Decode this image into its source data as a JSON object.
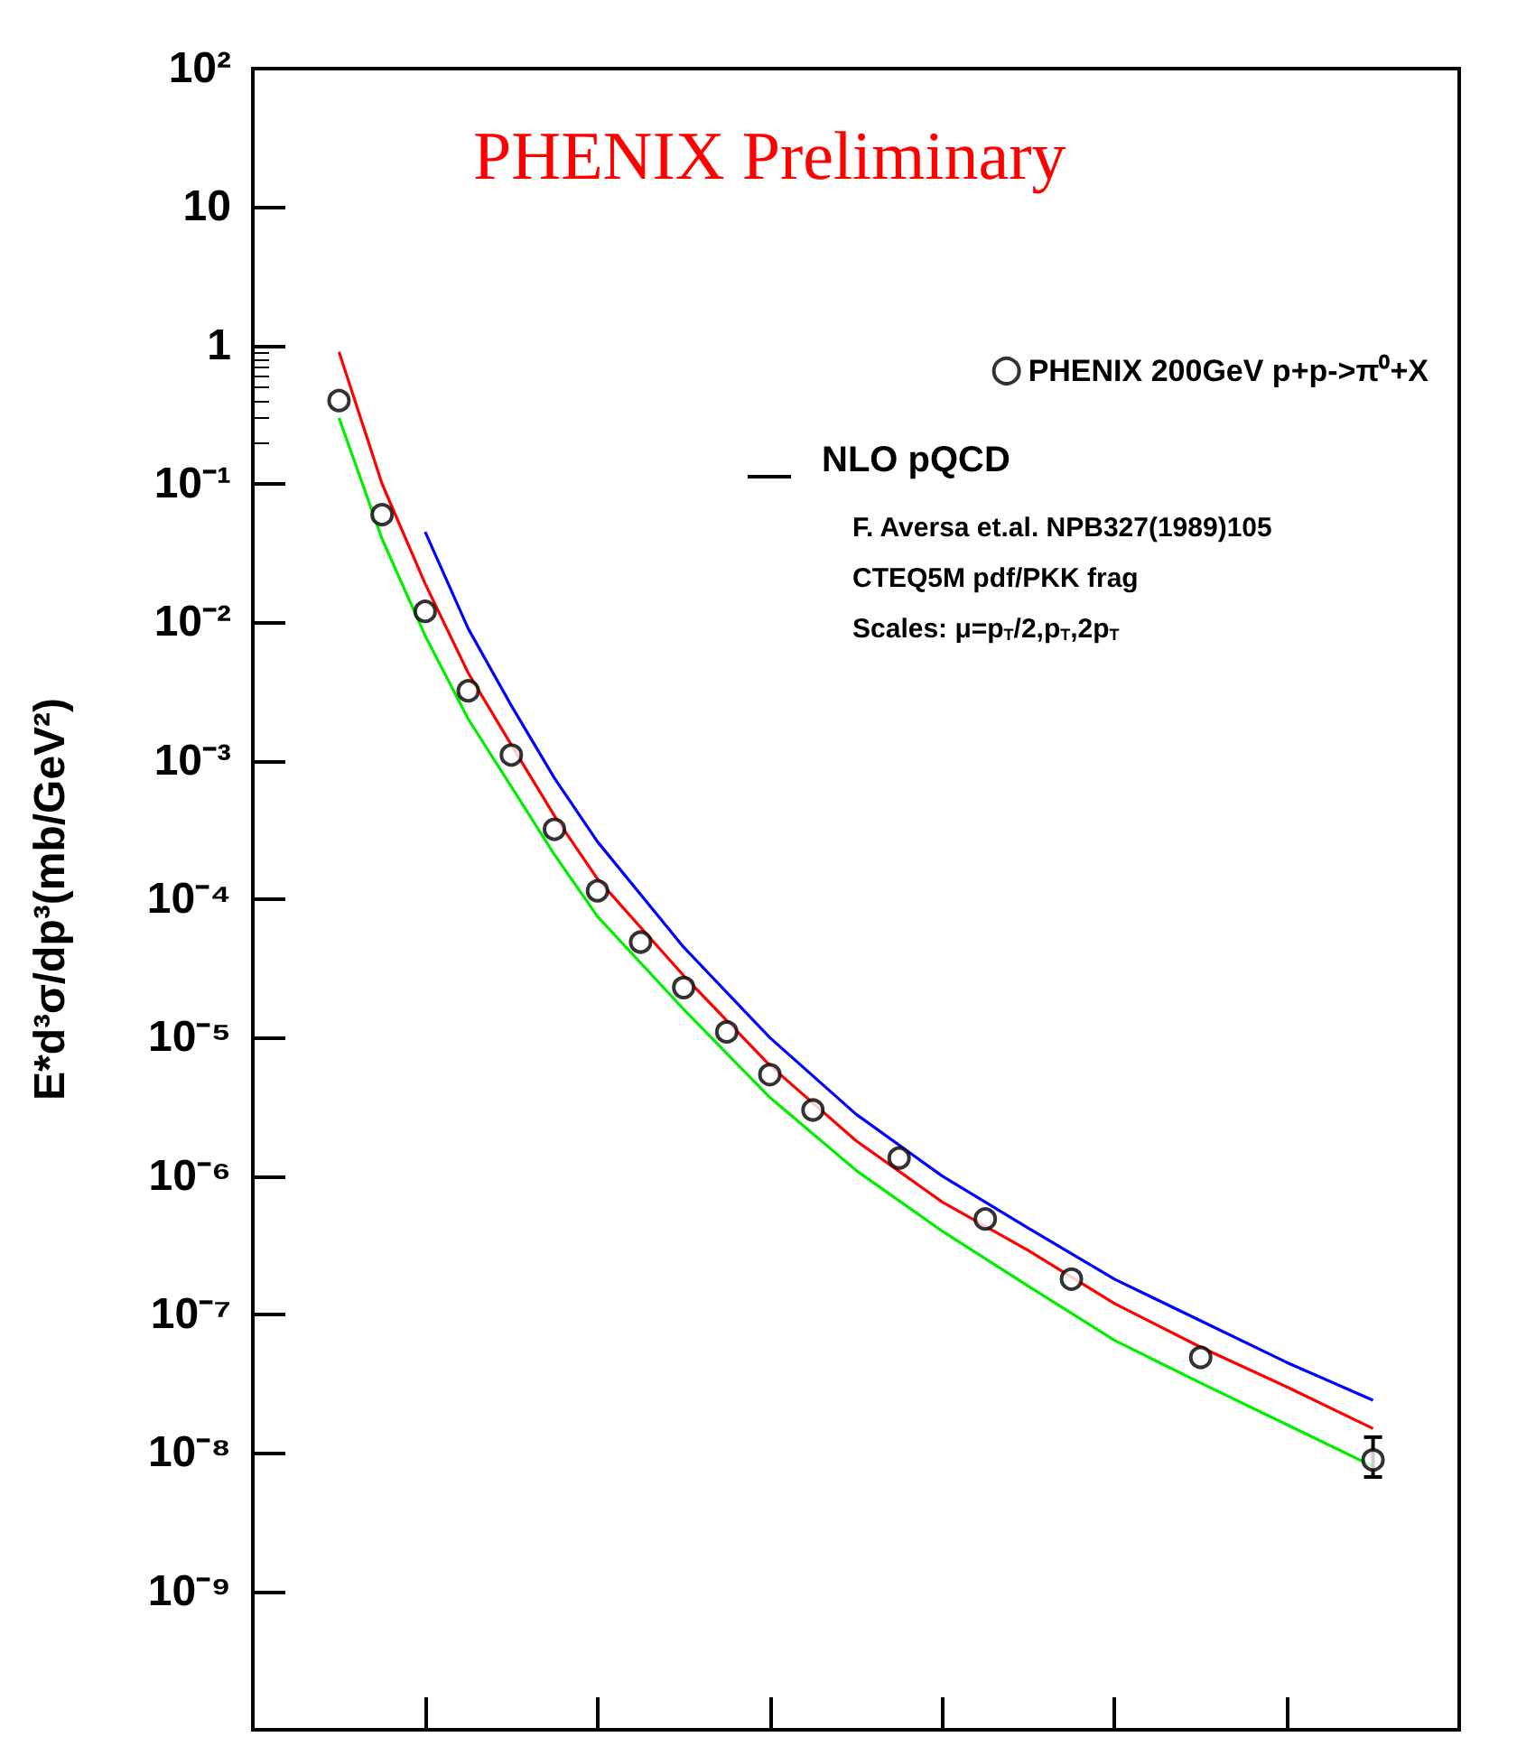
{
  "chart_data": {
    "type": "line",
    "title": "PHENIX Preliminary",
    "ylabel": "E*d³σ/dp³(mb/GeV²)",
    "categories": [
      null,
      null,
      null,
      null,
      null,
      null,
      null,
      null,
      null,
      null,
      null,
      null,
      null,
      null,
      null,
      null,
      null,
      null,
      null,
      null,
      null,
      null,
      null,
      null,
      null,
      null,
      null,
      null,
      null
    ],
    "series": [
      {
        "name": "PHENIX 200GeV p+p->π⁰+X",
        "type": "scatter",
        "color": "#000000",
        "marker": "circle",
        "values": [
          null,
          null,
          0.4,
          0.06,
          0.012,
          0.0032,
          0.0011,
          0.00032,
          0.000115,
          4.9e-05,
          2.3e-05,
          1.1e-05,
          5.4e-06,
          3e-06,
          null,
          1.35e-06,
          null,
          4.9e-07,
          null,
          1.8e-07,
          null,
          null,
          4.9e-08,
          null,
          null,
          null,
          8.9e-09,
          null,
          null
        ],
        "errors": [
          null,
          null,
          null,
          null,
          null,
          null,
          null,
          null,
          null,
          null,
          null,
          null,
          null,
          null,
          null,
          null,
          null,
          null,
          null,
          null,
          null,
          null,
          null,
          null,
          null,
          null,
          [
            6.7e-09,
            1.3e-08
          ],
          null,
          null
        ]
      },
      {
        "color": "#ff0000",
        "values": [
          null,
          null,
          0.9,
          0.1,
          0.019,
          0.0043,
          0.0013,
          0.0004,
          0.00014,
          null,
          2.8e-05,
          null,
          6.3e-06,
          null,
          1.8e-06,
          null,
          6.5e-07,
          null,
          2.9e-07,
          null,
          1.2e-07,
          null,
          5.8e-08,
          null,
          3e-08,
          null,
          1.5e-08,
          null,
          null
        ]
      },
      {
        "color": "#00ee00",
        "values": [
          null,
          null,
          0.3,
          0.04,
          0.008,
          0.002,
          0.00065,
          0.00021,
          7.5e-05,
          null,
          1.6e-05,
          null,
          3.7e-06,
          null,
          1.1e-06,
          null,
          4e-07,
          null,
          1.6e-07,
          null,
          6.5e-08,
          null,
          3.2e-08,
          null,
          1.6e-08,
          null,
          8e-09,
          null,
          null
        ]
      },
      {
        "color": "#0000ff",
        "values": [
          null,
          null,
          null,
          null,
          0.045,
          0.009,
          0.0025,
          0.00075,
          0.00026,
          null,
          4.5e-05,
          null,
          1e-05,
          null,
          2.8e-06,
          null,
          1e-06,
          null,
          4.2e-07,
          null,
          1.8e-07,
          null,
          9e-08,
          null,
          4.5e-08,
          null,
          2.4e-08,
          null,
          null
        ]
      }
    ],
    "ylim": [
      1e-10,
      100
    ],
    "yticks": [
      {
        "value": 1e-10,
        "label": null
      },
      {
        "value": 1e-09,
        "label": "10⁻⁹"
      },
      {
        "value": 1e-08,
        "label": "10⁻⁸"
      },
      {
        "value": 1e-07,
        "label": "10⁻⁷"
      },
      {
        "value": 1e-06,
        "label": "10⁻⁶"
      },
      {
        "value": 1e-05,
        "label": "10⁻⁵"
      },
      {
        "value": 0.0001,
        "label": "10⁻⁴"
      },
      {
        "value": 0.001,
        "label": "10⁻³"
      },
      {
        "value": 0.01,
        "label": "10⁻²"
      },
      {
        "value": 0.1,
        "label": "10⁻¹"
      },
      1,
      10,
      {
        "value": 100,
        "label": "10²"
      }
    ],
    "log": "y",
    "tick_labels": "y",
    "grid": false,
    "legend": "top right",
    "line_style": "solid",
    "annotations": [
      "NLO pQCD",
      "F. Aversa et.al. NPB327(1989)105",
      "CTEQ5M pdf/PKK frag",
      "Scales: μ=p$_{T}$/2,p$_{T}$,2p$_{T}$"
    ]
  }
}
